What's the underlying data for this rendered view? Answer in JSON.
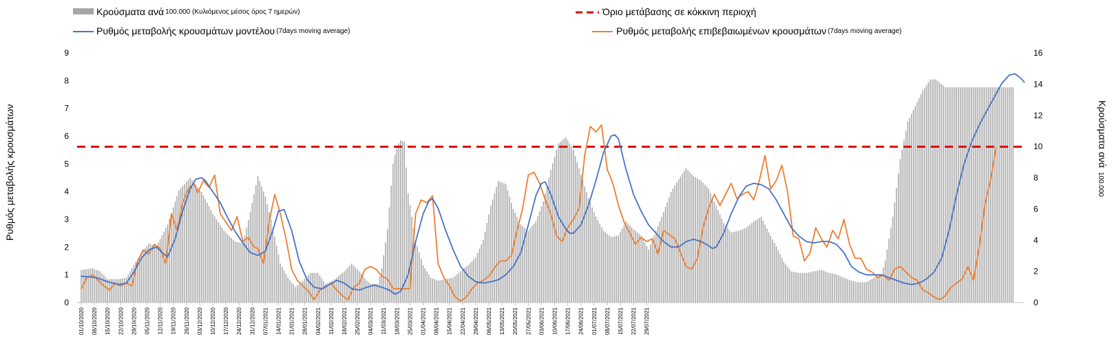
{
  "chart_data": {
    "type": "bar+line",
    "legend": {
      "bars_label": "Κρούσματα ανά",
      "bars_note": "100.000 (Κυλιόμενος μέσος όρος 7 ημερών)",
      "threshold_label": "Όριο μετάβασης σε κόκκινη περιοχή",
      "model_label": "Ρυθμός μεταβολής κρουσμάτων μοντέλου",
      "model_note": "(7days moving average)",
      "confirmed_label": "Ρυθμός μεταβολής επιβεβαιωμένων κρουσμάτων",
      "confirmed_note": "(7days moving average)"
    },
    "y_left_label": "Ρυθμός μεταβολής κρουσμάτων",
    "y_right_label": "Κρούσματα ανά",
    "y_right_note": "100.000",
    "y_left_range": [
      0,
      9
    ],
    "y_right_range": [
      0,
      16
    ],
    "y_left_ticks": [
      "0",
      "1",
      "2",
      "3",
      "4",
      "5",
      "6",
      "7",
      "8",
      "9"
    ],
    "y_right_ticks": [
      "0",
      "2",
      "4",
      "6",
      "8",
      "10",
      "12",
      "14",
      "16"
    ],
    "x_labels": [
      "01/10/2020",
      "08/10/2020",
      "15/10/2020",
      "22/10/2020",
      "29/10/2020",
      "05/11/2020",
      "12/11/2020",
      "19/11/2020",
      "26/11/2020",
      "03/12/2020",
      "10/12/2020",
      "17/12/2020",
      "24/12/2020",
      "31/12/2020",
      "07/01/2021",
      "14/01/2021",
      "21/01/2021",
      "28/01/2021",
      "04/02/2021",
      "11/02/2021",
      "18/02/2021",
      "25/02/2021",
      "04/03/2021",
      "11/03/2021",
      "18/03/2021",
      "25/03/2021",
      "01/04/2021",
      "08/04/2021",
      "15/04/2021",
      "22/04/2021",
      "29/04/2021",
      "06/05/2021",
      "13/05/2021",
      "20/05/2021",
      "27/05/2021",
      "03/06/2021",
      "10/06/2021",
      "17/06/2021",
      "24/06/2021",
      "01/07/2021",
      "08/07/2021",
      "15/07/2021",
      "22/07/2021",
      "29/07/2021"
    ],
    "threshold_left": 5.62,
    "colors": {
      "bars": "#a6a6a6",
      "threshold": "#e00000",
      "model": "#4472c4",
      "confirmed": "#ed7d31"
    },
    "bar_keyframes_right": [
      [
        0,
        2.1
      ],
      [
        6,
        2.2
      ],
      [
        10,
        2.0
      ],
      [
        14,
        1.5
      ],
      [
        20,
        1.5
      ],
      [
        24,
        1.6
      ],
      [
        30,
        2.8
      ],
      [
        36,
        3.8
      ],
      [
        40,
        3.6
      ],
      [
        46,
        5.0
      ],
      [
        52,
        7.2
      ],
      [
        58,
        8.0
      ],
      [
        64,
        7.1
      ],
      [
        70,
        5.7
      ],
      [
        76,
        4.6
      ],
      [
        82,
        3.9
      ],
      [
        86,
        3.8
      ],
      [
        90,
        5.8
      ],
      [
        94,
        8.1
      ],
      [
        98,
        6.8
      ],
      [
        102,
        4.8
      ],
      [
        106,
        2.5
      ],
      [
        110,
        1.6
      ],
      [
        114,
        1.0
      ],
      [
        118,
        1.4
      ],
      [
        122,
        1.9
      ],
      [
        126,
        1.9
      ],
      [
        130,
        1.2
      ],
      [
        134,
        1.4
      ],
      [
        138,
        1.8
      ],
      [
        140,
        2.0
      ],
      [
        144,
        2.5
      ],
      [
        148,
        2.0
      ],
      [
        152,
        1.4
      ],
      [
        154,
        1.2
      ],
      [
        158,
        1.2
      ],
      [
        160,
        2.2
      ],
      [
        163,
        4.7
      ],
      [
        166,
        8.9
      ],
      [
        168,
        10.0
      ],
      [
        170,
        10.4
      ],
      [
        172,
        10.3
      ],
      [
        174,
        7.0
      ],
      [
        178,
        4.0
      ],
      [
        182,
        2.4
      ],
      [
        186,
        1.6
      ],
      [
        190,
        1.4
      ],
      [
        194,
        1.5
      ],
      [
        198,
        1.6
      ],
      [
        202,
        2.0
      ],
      [
        206,
        2.4
      ],
      [
        210,
        2.9
      ],
      [
        214,
        4.0
      ],
      [
        218,
        6.2
      ],
      [
        222,
        7.8
      ],
      [
        226,
        7.6
      ],
      [
        230,
        6.0
      ],
      [
        234,
        5.0
      ],
      [
        238,
        4.6
      ],
      [
        242,
        5.2
      ],
      [
        246,
        6.5
      ],
      [
        250,
        8.5
      ],
      [
        254,
        10.2
      ],
      [
        258,
        10.6
      ],
      [
        262,
        9.8
      ],
      [
        266,
        8.2
      ],
      [
        270,
        6.7
      ],
      [
        274,
        5.5
      ],
      [
        278,
        4.6
      ],
      [
        282,
        4.2
      ],
      [
        286,
        4.3
      ],
      [
        290,
        5.2
      ],
      [
        294,
        4.7
      ],
      [
        298,
        4.3
      ],
      [
        302,
        3.4
      ],
      [
        306,
        4.6
      ],
      [
        310,
        5.8
      ],
      [
        314,
        7.1
      ],
      [
        318,
        7.9
      ],
      [
        322,
        8.6
      ],
      [
        326,
        8.1
      ],
      [
        330,
        7.8
      ],
      [
        334,
        7.3
      ],
      [
        338,
        6.2
      ],
      [
        342,
        5.1
      ],
      [
        346,
        4.5
      ],
      [
        350,
        4.6
      ],
      [
        354,
        4.8
      ],
      [
        358,
        5.2
      ],
      [
        362,
        5.5
      ],
      [
        366,
        4.5
      ],
      [
        370,
        3.6
      ],
      [
        374,
        2.6
      ],
      [
        378,
        2.0
      ],
      [
        382,
        1.9
      ],
      [
        386,
        1.9
      ],
      [
        390,
        2.0
      ],
      [
        394,
        2.1
      ],
      [
        398,
        1.9
      ],
      [
        402,
        1.8
      ],
      [
        406,
        1.6
      ],
      [
        410,
        1.4
      ],
      [
        414,
        1.3
      ],
      [
        418,
        1.3
      ],
      [
        422,
        1.6
      ],
      [
        426,
        1.8
      ],
      [
        428,
        2.7
      ],
      [
        432,
        5.5
      ],
      [
        436,
        9.2
      ],
      [
        440,
        11.6
      ],
      [
        444,
        12.6
      ],
      [
        448,
        13.6
      ],
      [
        452,
        14.3
      ],
      [
        455,
        14.3
      ],
      [
        458,
        14.0
      ],
      [
        460,
        13.8
      ]
    ],
    "model_keyframes": [
      [
        0,
        0.95
      ],
      [
        8,
        0.9
      ],
      [
        14,
        0.75
      ],
      [
        20,
        0.65
      ],
      [
        24,
        0.7
      ],
      [
        28,
        1.1
      ],
      [
        32,
        1.6
      ],
      [
        36,
        1.9
      ],
      [
        40,
        2.0
      ],
      [
        44,
        1.75
      ],
      [
        46,
        1.65
      ],
      [
        50,
        2.3
      ],
      [
        54,
        3.3
      ],
      [
        58,
        4.1
      ],
      [
        61,
        4.45
      ],
      [
        64,
        4.5
      ],
      [
        66,
        4.4
      ],
      [
        70,
        4.0
      ],
      [
        74,
        3.6
      ],
      [
        78,
        3.05
      ],
      [
        82,
        2.55
      ],
      [
        86,
        2.15
      ],
      [
        90,
        1.8
      ],
      [
        94,
        1.7
      ],
      [
        98,
        1.85
      ],
      [
        102,
        2.6
      ],
      [
        105,
        3.3
      ],
      [
        108,
        3.35
      ],
      [
        112,
        2.6
      ],
      [
        116,
        1.5
      ],
      [
        120,
        0.85
      ],
      [
        124,
        0.55
      ],
      [
        128,
        0.5
      ],
      [
        132,
        0.65
      ],
      [
        136,
        0.8
      ],
      [
        140,
        0.7
      ],
      [
        144,
        0.5
      ],
      [
        148,
        0.45
      ],
      [
        152,
        0.55
      ],
      [
        156,
        0.63
      ],
      [
        160,
        0.55
      ],
      [
        164,
        0.45
      ],
      [
        167,
        0.3
      ],
      [
        170,
        0.4
      ],
      [
        174,
        1.0
      ],
      [
        178,
        2.2
      ],
      [
        182,
        3.2
      ],
      [
        185,
        3.65
      ],
      [
        187,
        3.75
      ],
      [
        190,
        3.4
      ],
      [
        194,
        2.6
      ],
      [
        198,
        1.9
      ],
      [
        202,
        1.3
      ],
      [
        206,
        0.95
      ],
      [
        210,
        0.75
      ],
      [
        214,
        0.7
      ],
      [
        218,
        0.75
      ],
      [
        222,
        0.82
      ],
      [
        226,
        1.0
      ],
      [
        230,
        1.3
      ],
      [
        234,
        1.8
      ],
      [
        238,
        2.8
      ],
      [
        242,
        3.85
      ],
      [
        245,
        4.3
      ],
      [
        247,
        4.35
      ],
      [
        250,
        3.9
      ],
      [
        254,
        3.1
      ],
      [
        258,
        2.65
      ],
      [
        260,
        2.5
      ],
      [
        262,
        2.5
      ],
      [
        266,
        2.8
      ],
      [
        270,
        3.5
      ],
      [
        274,
        4.4
      ],
      [
        278,
        5.4
      ],
      [
        282,
        6.0
      ],
      [
        284,
        6.05
      ],
      [
        286,
        5.9
      ],
      [
        290,
        4.8
      ],
      [
        294,
        3.9
      ],
      [
        298,
        3.3
      ],
      [
        302,
        2.8
      ],
      [
        306,
        2.5
      ],
      [
        310,
        2.2
      ],
      [
        314,
        2.0
      ],
      [
        318,
        2.0
      ],
      [
        322,
        2.2
      ],
      [
        326,
        2.28
      ],
      [
        330,
        2.2
      ],
      [
        334,
        2.05
      ],
      [
        336,
        1.95
      ],
      [
        338,
        2.0
      ],
      [
        342,
        2.5
      ],
      [
        346,
        3.2
      ],
      [
        350,
        3.8
      ],
      [
        354,
        4.2
      ],
      [
        358,
        4.3
      ],
      [
        362,
        4.25
      ],
      [
        366,
        4.1
      ],
      [
        370,
        3.7
      ],
      [
        374,
        3.2
      ],
      [
        378,
        2.7
      ],
      [
        382,
        2.4
      ],
      [
        386,
        2.2
      ],
      [
        390,
        2.15
      ],
      [
        394,
        2.2
      ],
      [
        398,
        2.2
      ],
      [
        402,
        2.1
      ],
      [
        406,
        1.8
      ],
      [
        410,
        1.3
      ],
      [
        414,
        1.1
      ],
      [
        418,
        1.0
      ],
      [
        422,
        1.0
      ],
      [
        426,
        1.0
      ],
      [
        430,
        0.9
      ],
      [
        434,
        0.8
      ],
      [
        438,
        0.7
      ],
      [
        442,
        0.65
      ],
      [
        446,
        0.7
      ],
      [
        450,
        0.85
      ],
      [
        454,
        1.1
      ],
      [
        458,
        1.6
      ],
      [
        462,
        2.6
      ],
      [
        466,
        3.9
      ],
      [
        470,
        5.0
      ],
      [
        474,
        5.8
      ],
      [
        478,
        6.4
      ],
      [
        482,
        6.9
      ],
      [
        486,
        7.4
      ],
      [
        490,
        7.9
      ],
      [
        494,
        8.2
      ],
      [
        497,
        8.25
      ],
      [
        500,
        8.1
      ],
      [
        502,
        7.95
      ]
    ],
    "confirmed_keyframes": [
      [
        0,
        0.5
      ],
      [
        3,
        0.9
      ],
      [
        6,
        1.0
      ],
      [
        9,
        0.8
      ],
      [
        12,
        0.6
      ],
      [
        15,
        0.45
      ],
      [
        18,
        0.7
      ],
      [
        21,
        0.6
      ],
      [
        24,
        0.7
      ],
      [
        27,
        0.6
      ],
      [
        30,
        1.5
      ],
      [
        33,
        1.9
      ],
      [
        36,
        1.75
      ],
      [
        39,
        2.1
      ],
      [
        42,
        1.95
      ],
      [
        45,
        1.4
      ],
      [
        48,
        3.2
      ],
      [
        51,
        2.6
      ],
      [
        54,
        3.6
      ],
      [
        57,
        4.1
      ],
      [
        60,
        4.3
      ],
      [
        62,
        3.95
      ],
      [
        65,
        4.4
      ],
      [
        68,
        4.15
      ],
      [
        71,
        4.6
      ],
      [
        74,
        3.2
      ],
      [
        77,
        2.9
      ],
      [
        80,
        2.6
      ],
      [
        83,
        3.1
      ],
      [
        86,
        2.2
      ],
      [
        89,
        2.35
      ],
      [
        92,
        2.0
      ],
      [
        94,
        1.95
      ],
      [
        97,
        1.4
      ],
      [
        100,
        2.9
      ],
      [
        103,
        3.9
      ],
      [
        106,
        3.2
      ],
      [
        109,
        2.3
      ],
      [
        112,
        1.2
      ],
      [
        115,
        0.8
      ],
      [
        118,
        0.6
      ],
      [
        121,
        0.4
      ],
      [
        124,
        0.1
      ],
      [
        127,
        0.45
      ],
      [
        130,
        0.55
      ],
      [
        133,
        0.7
      ],
      [
        136,
        0.45
      ],
      [
        139,
        0.25
      ],
      [
        142,
        0.1
      ],
      [
        145,
        0.55
      ],
      [
        148,
        0.7
      ],
      [
        151,
        1.2
      ],
      [
        154,
        1.3
      ],
      [
        157,
        1.2
      ],
      [
        160,
        0.95
      ],
      [
        163,
        0.85
      ],
      [
        166,
        0.5
      ],
      [
        169,
        0.5
      ],
      [
        172,
        0.5
      ],
      [
        175,
        0.5
      ],
      [
        178,
        3.2
      ],
      [
        181,
        3.7
      ],
      [
        184,
        3.6
      ],
      [
        187,
        3.85
      ],
      [
        190,
        1.4
      ],
      [
        193,
        0.9
      ],
      [
        196,
        0.6
      ],
      [
        199,
        0.2
      ],
      [
        202,
        0.05
      ],
      [
        205,
        0.2
      ],
      [
        208,
        0.5
      ],
      [
        211,
        0.7
      ],
      [
        214,
        0.8
      ],
      [
        217,
        0.95
      ],
      [
        220,
        1.25
      ],
      [
        223,
        1.5
      ],
      [
        226,
        1.5
      ],
      [
        229,
        1.7
      ],
      [
        232,
        2.6
      ],
      [
        235,
        3.4
      ],
      [
        238,
        4.6
      ],
      [
        241,
        4.7
      ],
      [
        244,
        4.3
      ],
      [
        247,
        3.7
      ],
      [
        250,
        3.2
      ],
      [
        253,
        2.4
      ],
      [
        256,
        2.2
      ],
      [
        259,
        2.7
      ],
      [
        262,
        3.0
      ],
      [
        265,
        3.4
      ],
      [
        268,
        5.3
      ],
      [
        271,
        6.35
      ],
      [
        274,
        6.15
      ],
      [
        277,
        6.4
      ],
      [
        280,
        4.8
      ],
      [
        283,
        4.3
      ],
      [
        286,
        3.5
      ],
      [
        289,
        2.9
      ],
      [
        292,
        2.5
      ],
      [
        295,
        2.1
      ],
      [
        298,
        2.35
      ],
      [
        301,
        2.2
      ],
      [
        304,
        2.3
      ],
      [
        307,
        1.75
      ],
      [
        310,
        2.6
      ],
      [
        313,
        2.45
      ],
      [
        316,
        2.3
      ],
      [
        319,
        1.8
      ],
      [
        322,
        1.3
      ],
      [
        325,
        1.2
      ],
      [
        328,
        1.6
      ],
      [
        331,
        2.7
      ],
      [
        334,
        3.4
      ],
      [
        337,
        3.9
      ],
      [
        340,
        3.5
      ],
      [
        343,
        3.9
      ],
      [
        346,
        4.3
      ],
      [
        349,
        3.75
      ],
      [
        352,
        3.9
      ],
      [
        355,
        4.0
      ],
      [
        358,
        3.7
      ],
      [
        361,
        4.4
      ],
      [
        364,
        5.3
      ],
      [
        367,
        4.1
      ],
      [
        370,
        4.4
      ],
      [
        373,
        4.95
      ],
      [
        376,
        4.0
      ],
      [
        379,
        2.4
      ],
      [
        382,
        2.3
      ],
      [
        385,
        1.5
      ],
      [
        388,
        1.8
      ],
      [
        391,
        2.7
      ],
      [
        394,
        2.3
      ],
      [
        397,
        2.0
      ],
      [
        400,
        2.6
      ],
      [
        403,
        2.3
      ],
      [
        406,
        3.0
      ],
      [
        409,
        2.1
      ],
      [
        412,
        1.6
      ],
      [
        415,
        1.6
      ],
      [
        418,
        1.2
      ],
      [
        421,
        1.1
      ],
      [
        424,
        0.9
      ],
      [
        427,
        1.0
      ],
      [
        430,
        0.8
      ],
      [
        433,
        1.2
      ],
      [
        436,
        1.3
      ],
      [
        439,
        1.1
      ],
      [
        442,
        0.9
      ],
      [
        445,
        0.8
      ],
      [
        448,
        0.45
      ],
      [
        451,
        0.35
      ],
      [
        454,
        0.2
      ],
      [
        457,
        0.1
      ],
      [
        460,
        0.25
      ],
      [
        463,
        0.55
      ],
      [
        466,
        0.7
      ],
      [
        469,
        0.85
      ],
      [
        472,
        1.3
      ],
      [
        475,
        0.8
      ],
      [
        478,
        2.0
      ],
      [
        481,
        3.5
      ],
      [
        484,
        4.4
      ],
      [
        487,
        5.6
      ]
    ],
    "bar_days": 497
  }
}
